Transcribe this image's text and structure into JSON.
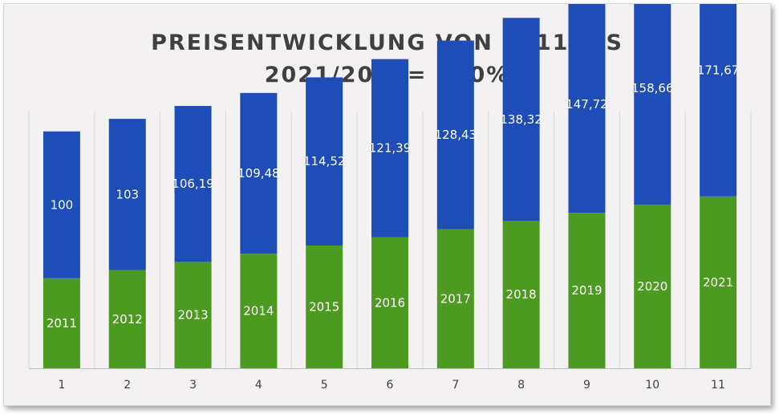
{
  "chart_data": {
    "type": "bar",
    "stacked": true,
    "title_line1": "PREISENTWICKLUNG VON 2011 BIS",
    "title_line2": "2021/2011= 100%",
    "categories": [
      "1",
      "2",
      "3",
      "4",
      "5",
      "6",
      "7",
      "8",
      "9",
      "10",
      "11"
    ],
    "series": [
      {
        "color": "#4c9a22",
        "values": [
          2011,
          2012,
          2013,
          2014,
          2015,
          2016,
          2017,
          2018,
          2019,
          2020,
          2021
        ],
        "labels": [
          "2011",
          "2012",
          "2013",
          "2014",
          "2015",
          "2016",
          "2017",
          "2018",
          "2019",
          "2020",
          "2021"
        ]
      },
      {
        "color": "#1f4db8",
        "values": [
          100,
          103,
          106.19,
          109.48,
          114.52,
          121.39,
          128.43,
          138.32,
          147.72,
          158.66,
          171.67
        ],
        "labels": [
          "100",
          "103",
          "106,19",
          "109,48",
          "114,52",
          "121,39",
          "128,43",
          "138,32",
          "147,72",
          "158,66",
          "171,67"
        ]
      }
    ],
    "grid": "vertical",
    "legend": "none"
  },
  "colors": {
    "background": "#f4f1f2",
    "gridline": "#d9d9d9",
    "axis": "#bfbfbf"
  }
}
